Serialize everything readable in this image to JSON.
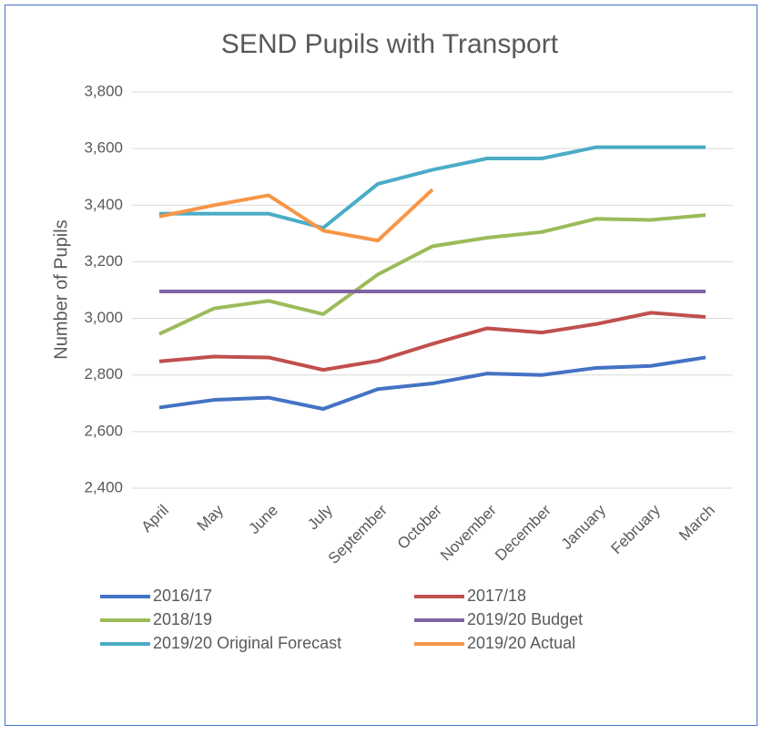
{
  "chart_data": {
    "type": "line",
    "title": "SEND Pupils with Transport",
    "y_label": "Number of Pupils",
    "categories": [
      "April",
      "May",
      "June",
      "July",
      "September",
      "October",
      "November",
      "December",
      "January",
      "February",
      "March"
    ],
    "series": [
      {
        "name": "2016/17",
        "color": "#4472c4",
        "values": [
          2685,
          2712,
          2720,
          2680,
          2750,
          2770,
          2805,
          2800,
          2825,
          2832,
          2862
        ]
      },
      {
        "name": "2017/18",
        "color": "#c0504d",
        "values": [
          2848,
          2865,
          2862,
          2818,
          2850,
          2910,
          2965,
          2950,
          2980,
          3020,
          3005
        ]
      },
      {
        "name": "2018/19",
        "color": "#9bbb59",
        "values": [
          2945,
          3035,
          3062,
          3015,
          3155,
          3255,
          3285,
          3305,
          3352,
          3348,
          3365
        ]
      },
      {
        "name": "2019/20 Budget",
        "color": "#8064a2",
        "values": [
          3095,
          3095,
          3095,
          3095,
          3095,
          3095,
          3095,
          3095,
          3095,
          3095,
          3095
        ]
      },
      {
        "name": "2019/20 Original Forecast",
        "color": "#4bacc6",
        "values": [
          3370,
          3370,
          3370,
          3320,
          3475,
          3525,
          3565,
          3565,
          3605,
          3605,
          3605
        ]
      },
      {
        "name": "2019/20 Actual",
        "color": "#f79646",
        "values": [
          3360,
          3400,
          3435,
          3310,
          3275,
          3455,
          null,
          null,
          null,
          null,
          null
        ]
      }
    ],
    "ylim": [
      2400,
      3800
    ],
    "yticks": [
      {
        "value": 2400,
        "label": "2,400"
      },
      {
        "value": 2600,
        "label": "2,600"
      },
      {
        "value": 2800,
        "label": "2,800"
      },
      {
        "value": 3000,
        "label": "3,000"
      },
      {
        "value": 3200,
        "label": "3,200"
      },
      {
        "value": 3400,
        "label": "3,400"
      },
      {
        "value": 3600,
        "label": "3,600"
      },
      {
        "value": 3800,
        "label": "3,800"
      }
    ],
    "grid": true,
    "legend": "bottom"
  }
}
